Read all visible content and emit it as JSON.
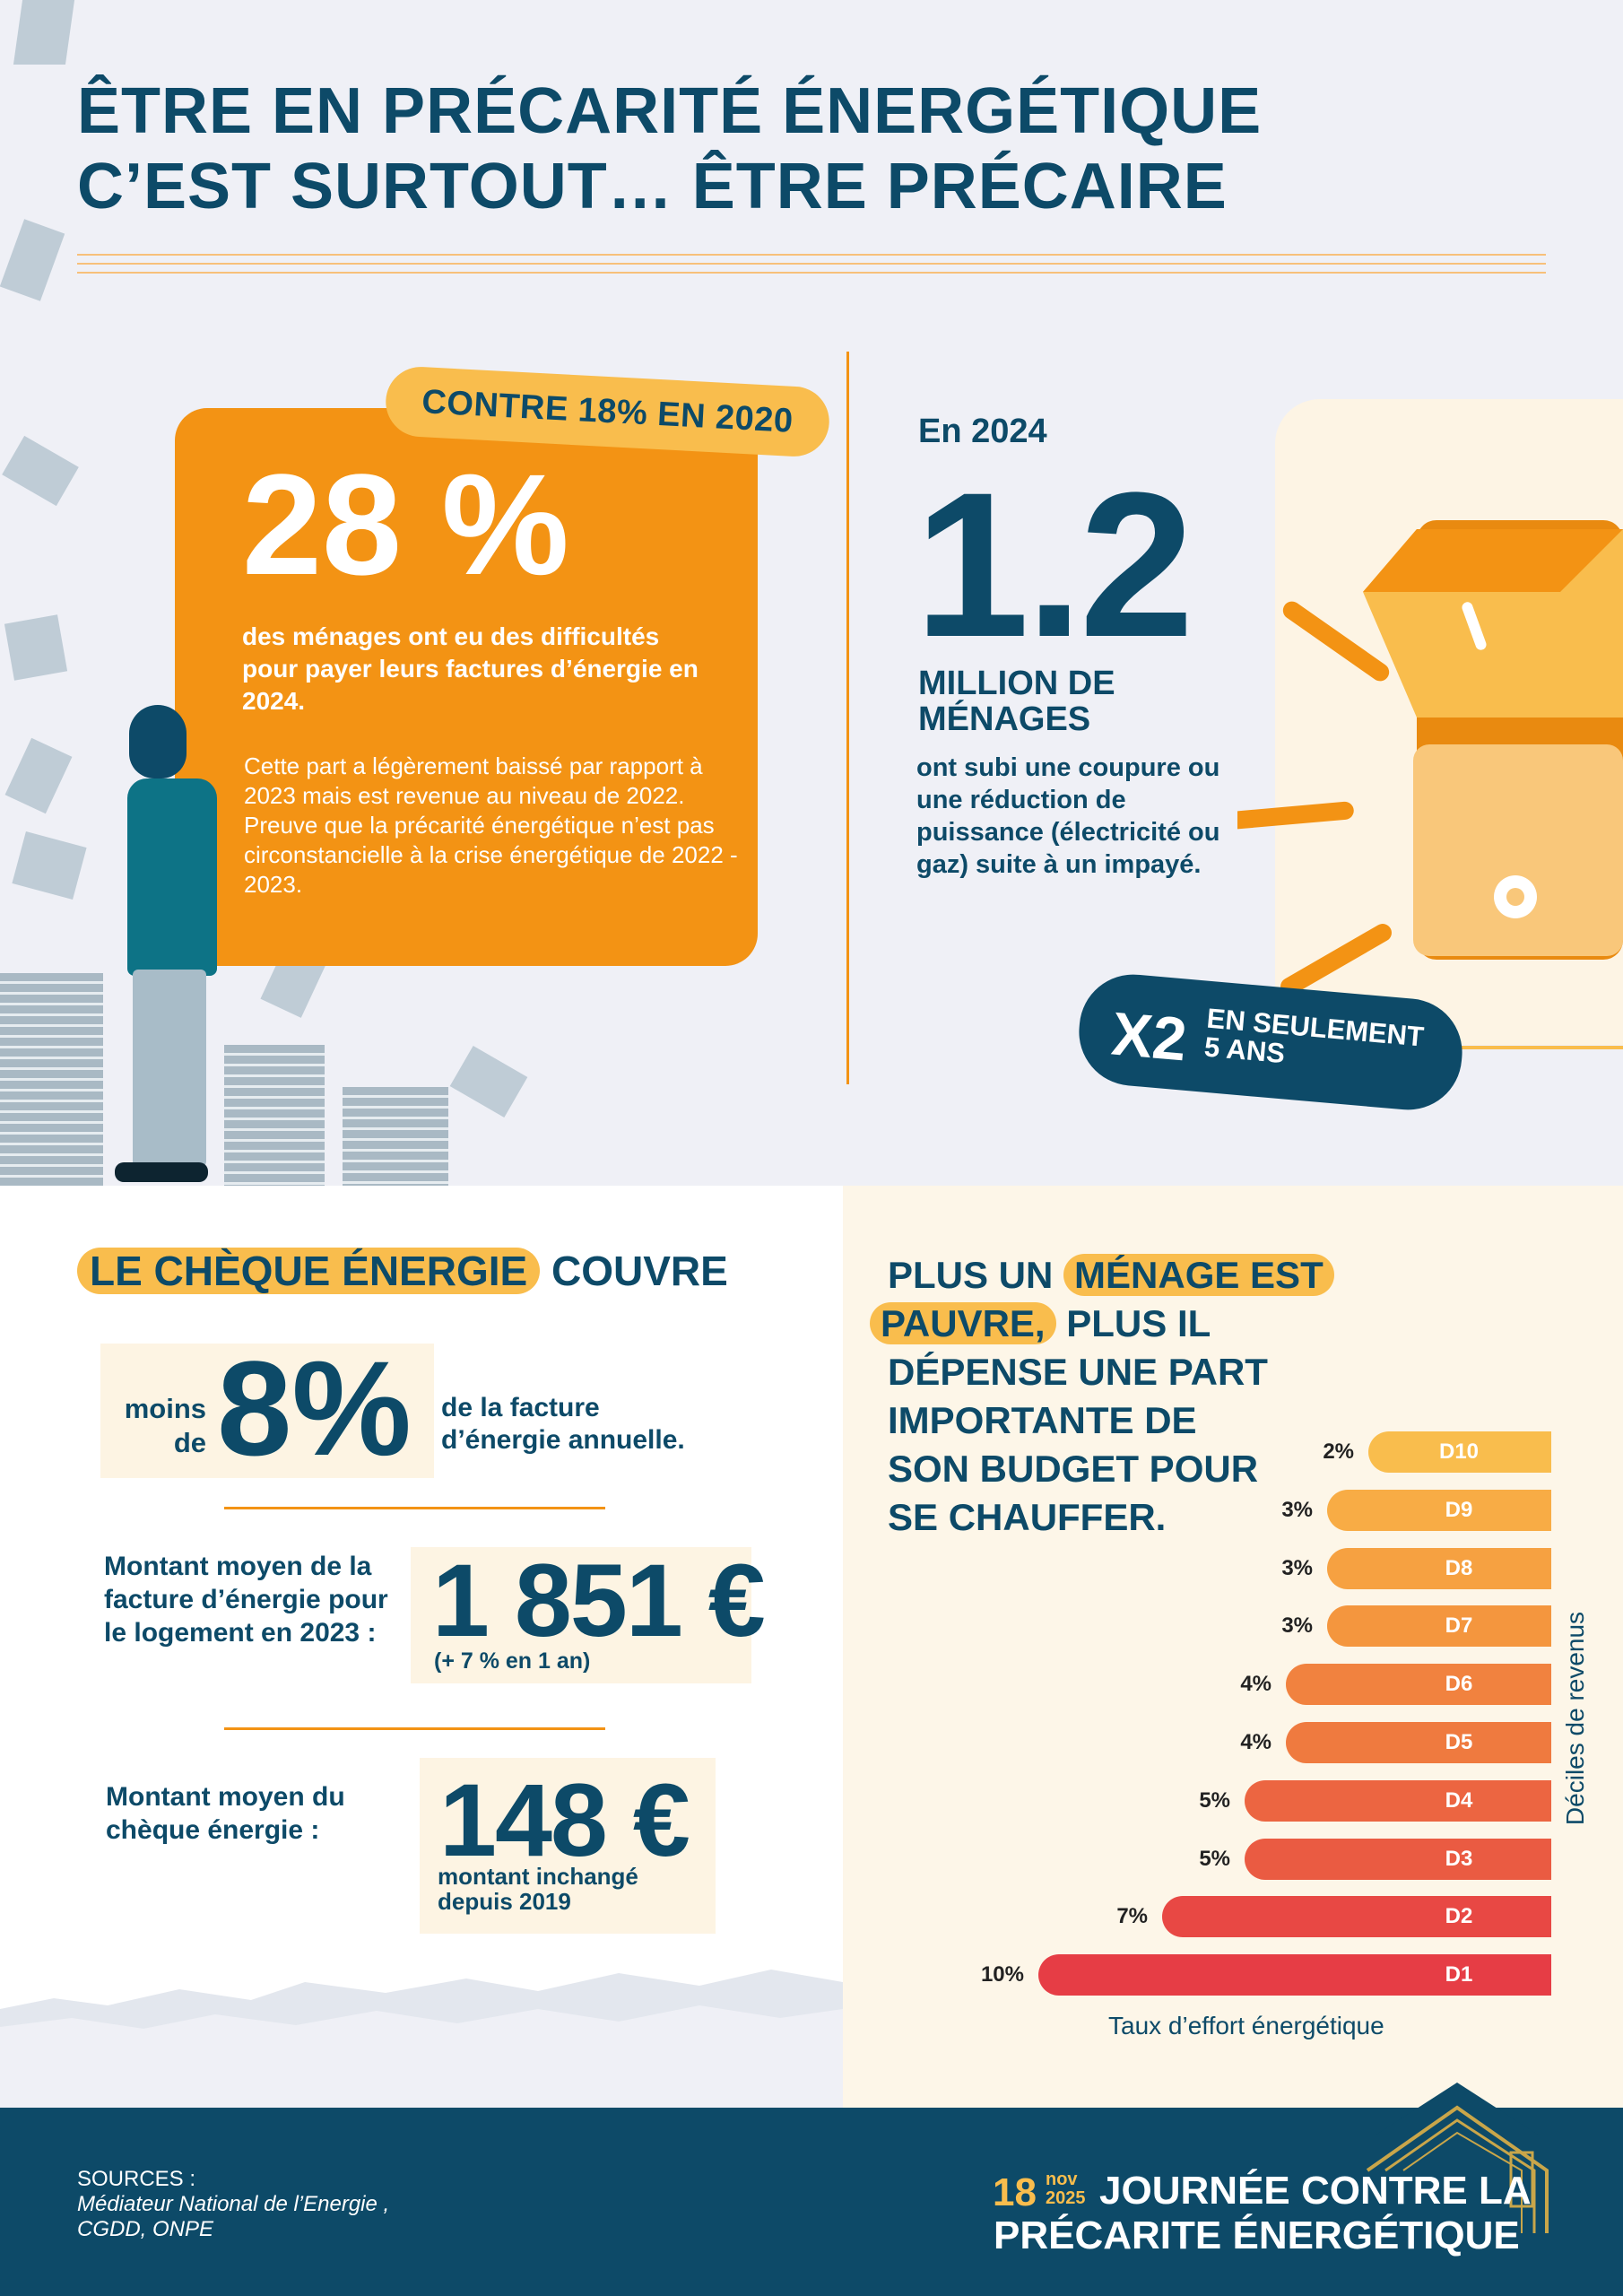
{
  "header": {
    "title_line1": "ÊTRE EN PRÉCARITÉ ÉNERGÉTIQUE",
    "title_line2": "C’EST SURTOUT… ÊTRE PRÉCAIRE"
  },
  "stat_28": {
    "badge": "CONTRE 18% EN 2020",
    "value": "28 %",
    "description": "des ménages ont eu des difficultés pour payer leurs factures d’énergie en 2024.",
    "note": "Cette part a légèrement baissé par rapport à 2023 mais est revenue au niveau de 2022. Preuve que la précarité énergétique n’est pas circonstancielle à la crise énergétique de 2022 - 2023."
  },
  "stat_12": {
    "year": "En 2024",
    "value": "1.2",
    "unit": "MILLION DE MÉNAGES",
    "description": "ont subi une coupure ou une réduction de puissance (électricité ou gaz) suite à un impayé.",
    "badge_main": "X2",
    "badge_sub_line1": "EN SEULEMENT",
    "badge_sub_line2": "5 ANS"
  },
  "cheque": {
    "title_highlight": "LE CHÈQUE ÉNERGIE",
    "title_rest": "COUVRE",
    "moins_line1": "moins",
    "moins_line2": "de",
    "pct": "8%",
    "facture_line1": "de la facture",
    "facture_line2": "d’énergie annuelle.",
    "avg_bill_label": "Montant moyen de la facture d’énergie pour le logement en 2023 :",
    "avg_bill_value": "1 851 €",
    "avg_bill_sub": "(+ 7 % en 1 an)",
    "avg_cheque_label": "Montant moyen du chèque énergie :",
    "avg_cheque_value": "148 €",
    "avg_cheque_sub": "montant inchangé depuis 2019"
  },
  "chart_title": {
    "part1": "PLUS UN",
    "highlight1": "MÉNAGE EST",
    "highlight2": "PAUVRE,",
    "part2": "PLUS IL",
    "line3": "DÉPENSE UNE PART",
    "line4": "IMPORTANTE DE",
    "line5": "SON BUDGET POUR",
    "line6": "SE CHAUFFER."
  },
  "chart_data": {
    "type": "bar",
    "orientation": "horizontal",
    "categories": [
      "D10",
      "D9",
      "D8",
      "D7",
      "D6",
      "D5",
      "D4",
      "D3",
      "D2",
      "D1"
    ],
    "values": [
      2,
      3,
      3,
      3,
      4,
      4,
      5,
      5,
      7,
      10
    ],
    "value_labels": [
      "2%",
      "3%",
      "3%",
      "3%",
      "4%",
      "4%",
      "5%",
      "5%",
      "7%",
      "10%"
    ],
    "colors": [
      "#f9bd4d",
      "#f8ac45",
      "#f6a141",
      "#f4963e",
      "#f1823f",
      "#ef7a3f",
      "#ec6541",
      "#ea5b42",
      "#e84844",
      "#e63d45"
    ],
    "xlabel": "Taux d’effort énergétique",
    "ylabel": "Déciles de revenus"
  },
  "footer": {
    "sources_label": "SOURCES :",
    "sources_line1": "Médiateur National de l’Energie ,",
    "sources_line2": "CGDD, ONPE",
    "day": "18",
    "month": "nov",
    "year": "2025",
    "event_line1": "JOURNÉE CONTRE LA",
    "event_line2": "PRÉCARITE ÉNERGÉTIQUE"
  },
  "colors": {
    "navy": "#0d4a68",
    "orange": "#f39314",
    "yellow": "#f9bd4d",
    "cream": "#fdf4e3"
  }
}
